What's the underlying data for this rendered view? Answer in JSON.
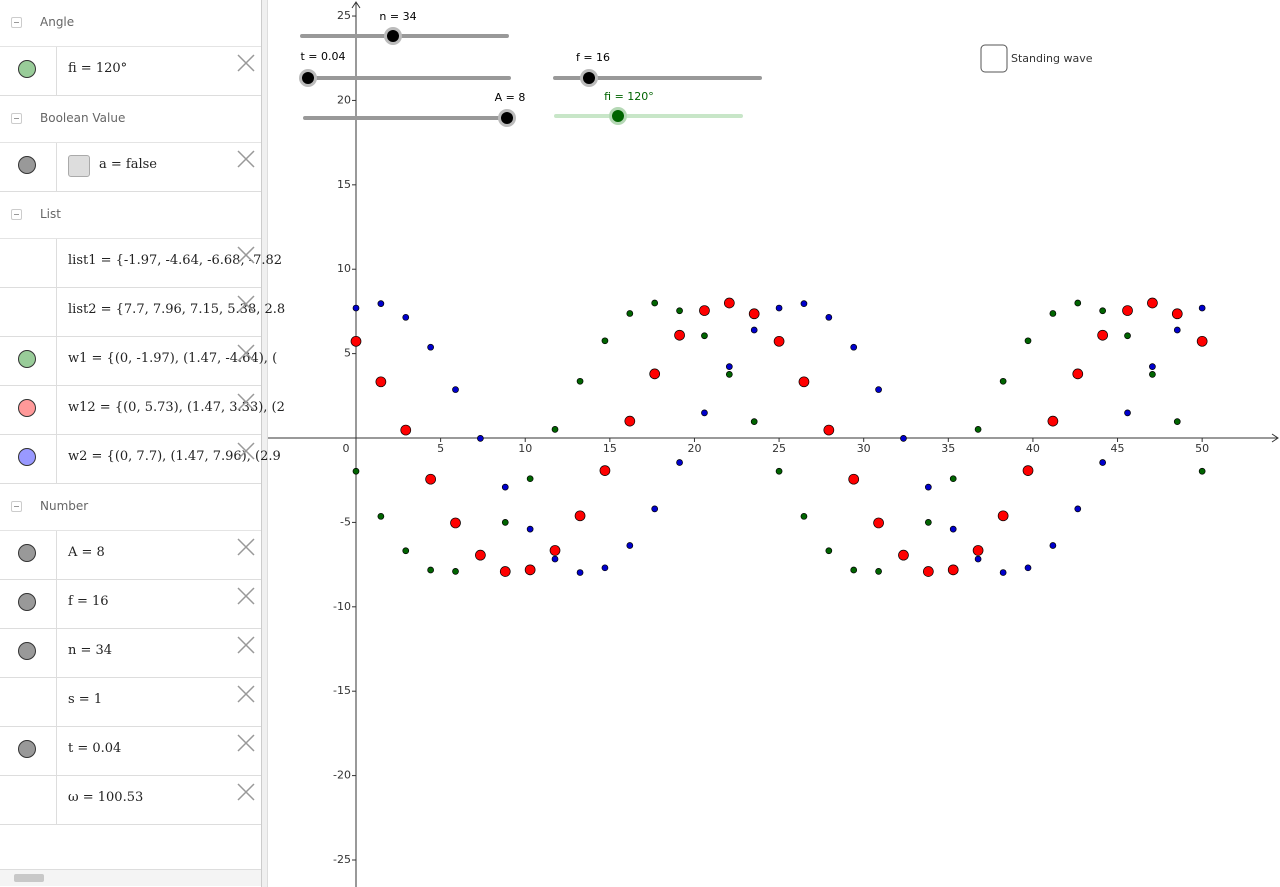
{
  "algebra_view": [
    {
      "title": "Angle",
      "items": [
        {
          "text": "fi = 120°",
          "color": "#99cc99"
        }
      ]
    },
    {
      "title": "Boolean Value",
      "items": [
        {
          "text": "a = false",
          "color": "#999999",
          "checkbox": true
        }
      ]
    },
    {
      "title": "List",
      "items": [
        {
          "text": "list1 = {-1.97, -4.64, -6.68, -7.82"
        },
        {
          "text": "list2 = {7.7, 7.96, 7.15, 5.38, 2.8"
        },
        {
          "text": "w1 = {(0, -1.97), (1.47, -4.64), (",
          "color": "#99cc99"
        },
        {
          "text": "w12 = {(0, 5.73), (1.47, 3.33), (2",
          "color": "#ff9999"
        },
        {
          "text": "w2 = {(0, 7.7), (1.47, 7.96), (2.9",
          "color": "#9999ff"
        }
      ]
    },
    {
      "title": "Number",
      "items": [
        {
          "text": "A = 8",
          "color": "#999999"
        },
        {
          "text": "f = 16",
          "color": "#999999"
        },
        {
          "text": "n = 34",
          "color": "#999999"
        },
        {
          "text": "s = 1"
        },
        {
          "text": "t = 0.04",
          "color": "#999999"
        },
        {
          "text": "ω = 100.53"
        }
      ]
    }
  ],
  "sliders": [
    {
      "label": "n = 34",
      "color": "#000000"
    },
    {
      "label": "t = 0.04",
      "color": "#000000"
    },
    {
      "label": "A = 8",
      "color": "#000000"
    },
    {
      "label": "f = 16",
      "color": "#000000"
    },
    {
      "label": "fi = 120°",
      "color": "#006400"
    }
  ],
  "checkbox_label": "Standing wave",
  "chart_data": {
    "type": "scatter",
    "x": [
      0,
      1.47,
      2.94,
      4.41,
      5.88,
      7.35,
      8.82,
      10.29,
      11.76,
      13.24,
      14.71,
      16.18,
      17.65,
      19.12,
      20.59,
      22.06,
      23.53,
      25,
      26.47,
      27.94,
      29.41,
      30.88,
      32.35,
      33.82,
      35.29,
      36.76,
      38.24,
      39.71,
      41.18,
      42.65,
      44.12,
      45.59,
      47.06,
      48.53,
      50
    ],
    "series": [
      {
        "color": "#006400",
        "values": [
          -1.97,
          -4.64,
          -6.68,
          -7.82,
          -7.9,
          -6.92,
          -5,
          -2.41,
          0.51,
          3.36,
          5.76,
          7.38,
          8,
          7.54,
          6.06,
          3.77,
          0.97,
          -1.97,
          -4.64,
          -6.68,
          -7.82,
          -7.9,
          -6.92,
          -5,
          -2.41,
          0.51,
          3.36,
          5.76,
          7.38,
          8,
          7.54,
          6.06,
          3.77,
          0.97,
          -1.97
        ]
      },
      {
        "color": "#ff0000",
        "values": [
          5.73,
          3.33,
          0.47,
          -2.44,
          -5.03,
          -6.94,
          -7.91,
          -7.81,
          -6.66,
          -4.61,
          -1.93,
          1,
          3.8,
          6.09,
          7.55,
          8,
          7.36,
          5.73,
          3.33,
          0.47,
          -2.44,
          -5.03,
          -6.94,
          -7.91,
          -7.81,
          -6.66,
          -4.61,
          -1.93,
          1,
          3.8,
          6.09,
          7.55,
          8,
          7.36,
          5.73
        ]
      },
      {
        "color": "#0000cc",
        "values": [
          7.7,
          7.96,
          7.15,
          5.38,
          2.87,
          -0.02,
          -2.91,
          -5.4,
          -7.17,
          -7.97,
          -7.69,
          -6.37,
          -4.2,
          -1.45,
          1.49,
          4.23,
          6.4,
          7.7,
          7.96,
          7.15,
          5.38,
          2.87,
          -0.02,
          -2.91,
          -5.4,
          -7.17,
          -7.97,
          -7.69,
          -6.37,
          -4.2,
          -1.45,
          1.49,
          4.23,
          6.4,
          7.7
        ]
      }
    ],
    "xlim": [
      -5.2,
      54.6
    ],
    "ylim": [
      -26.6,
      25.95
    ],
    "xticks": [
      0,
      5,
      10,
      15,
      20,
      25,
      30,
      35,
      40,
      45,
      50
    ],
    "yticks": [
      -25,
      -20,
      -15,
      -10,
      -5,
      5,
      10,
      15,
      20,
      25
    ]
  }
}
